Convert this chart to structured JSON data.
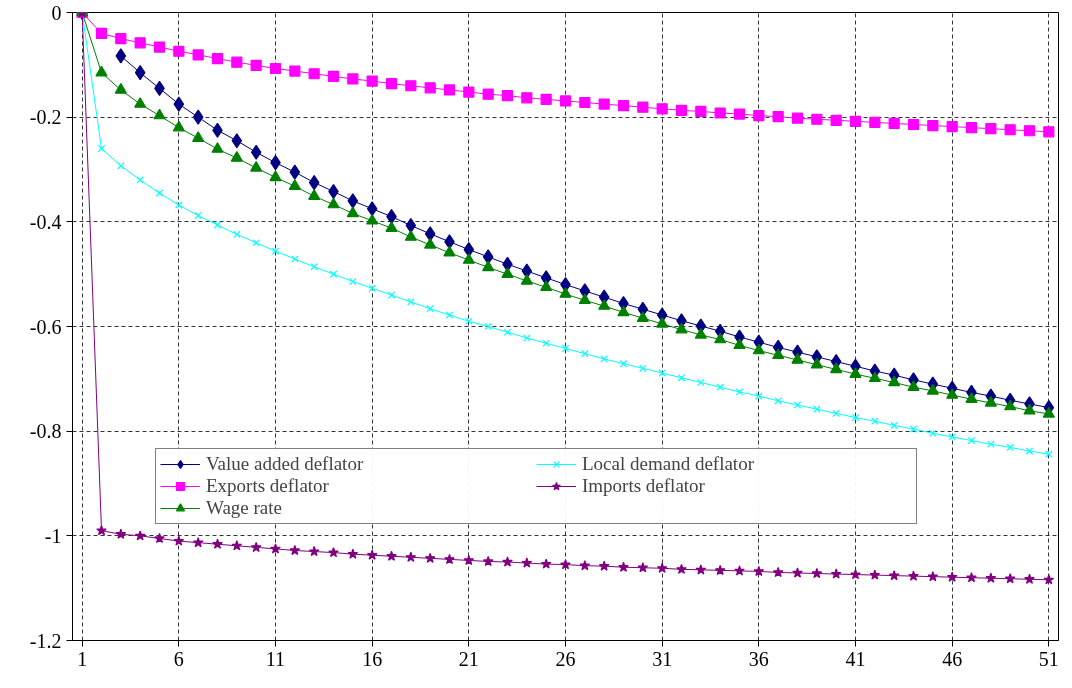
{
  "chart_data": {
    "type": "line",
    "x": [
      1,
      2,
      3,
      4,
      5,
      6,
      7,
      8,
      9,
      10,
      11,
      12,
      13,
      14,
      15,
      16,
      17,
      18,
      19,
      20,
      21,
      22,
      23,
      24,
      25,
      26,
      27,
      28,
      29,
      30,
      31,
      32,
      33,
      34,
      35,
      36,
      37,
      38,
      39,
      40,
      41,
      42,
      43,
      44,
      45,
      46,
      47,
      48,
      49,
      50,
      51
    ],
    "xlim": [
      0.5,
      51.5
    ],
    "xticks": [
      1,
      6,
      11,
      16,
      21,
      26,
      31,
      36,
      41,
      46,
      51
    ],
    "ylim": [
      -1.2,
      0
    ],
    "yticks": [
      -1.2,
      -1,
      -0.8,
      -0.6,
      -0.4,
      -0.2,
      0
    ],
    "grid": true,
    "legend": "bottom",
    "series": [
      {
        "name": "Value added deflator",
        "color": "#000080",
        "marker": "diamond",
        "values": [
          0,
          null,
          -0.083,
          -0.115,
          -0.145,
          -0.175,
          -0.2,
          -0.225,
          -0.245,
          -0.267,
          -0.287,
          -0.305,
          -0.325,
          -0.342,
          -0.36,
          -0.375,
          -0.39,
          -0.407,
          -0.423,
          -0.438,
          -0.453,
          -0.467,
          -0.481,
          -0.494,
          -0.507,
          -0.52,
          -0.532,
          -0.544,
          -0.556,
          -0.567,
          -0.578,
          -0.589,
          -0.599,
          -0.609,
          -0.62,
          -0.63,
          -0.64,
          -0.649,
          -0.658,
          -0.667,
          -0.676,
          -0.685,
          -0.693,
          -0.702,
          -0.71,
          -0.718,
          -0.726,
          -0.733,
          -0.741,
          -0.748,
          -0.755
        ]
      },
      {
        "name": "Exports deflator",
        "color": "#ff00ff",
        "marker": "square",
        "values": [
          0,
          -0.04,
          -0.05,
          -0.058,
          -0.066,
          -0.074,
          -0.081,
          -0.088,
          -0.095,
          -0.101,
          -0.107,
          -0.112,
          -0.117,
          -0.122,
          -0.127,
          -0.131,
          -0.136,
          -0.14,
          -0.144,
          -0.148,
          -0.152,
          -0.156,
          -0.159,
          -0.163,
          -0.166,
          -0.169,
          -0.172,
          -0.175,
          -0.178,
          -0.181,
          -0.184,
          -0.187,
          -0.189,
          -0.192,
          -0.194,
          -0.197,
          -0.199,
          -0.202,
          -0.204,
          -0.206,
          -0.208,
          -0.21,
          -0.212,
          -0.214,
          -0.216,
          -0.218,
          -0.22,
          -0.222,
          -0.224,
          -0.226,
          -0.228
        ]
      },
      {
        "name": "Wage rate",
        "color": "#008000",
        "marker": "triangle",
        "values": [
          0,
          -0.115,
          -0.148,
          -0.175,
          -0.197,
          -0.22,
          -0.24,
          -0.261,
          -0.278,
          -0.297,
          -0.315,
          -0.332,
          -0.351,
          -0.367,
          -0.384,
          -0.398,
          -0.412,
          -0.429,
          -0.444,
          -0.459,
          -0.473,
          -0.487,
          -0.5,
          -0.513,
          -0.525,
          -0.538,
          -0.55,
          -0.561,
          -0.573,
          -0.584,
          -0.595,
          -0.606,
          -0.616,
          -0.625,
          -0.636,
          -0.646,
          -0.655,
          -0.664,
          -0.673,
          -0.682,
          -0.691,
          -0.699,
          -0.707,
          -0.716,
          -0.723,
          -0.731,
          -0.739,
          -0.746,
          -0.753,
          -0.761,
          -0.767
        ]
      },
      {
        "name": "Local demand deflator",
        "color": "#00ffff",
        "marker": "cross",
        "values": [
          0,
          -0.26,
          -0.293,
          -0.32,
          -0.345,
          -0.368,
          -0.388,
          -0.406,
          -0.424,
          -0.44,
          -0.456,
          -0.471,
          -0.486,
          -0.5,
          -0.514,
          -0.527,
          -0.54,
          -0.553,
          -0.566,
          -0.578,
          -0.59,
          -0.6,
          -0.611,
          -0.622,
          -0.632,
          -0.642,
          -0.652,
          -0.662,
          -0.671,
          -0.68,
          -0.689,
          -0.698,
          -0.707,
          -0.716,
          -0.725,
          -0.733,
          -0.742,
          -0.75,
          -0.758,
          -0.766,
          -0.774,
          -0.781,
          -0.789,
          -0.796,
          -0.804,
          -0.811,
          -0.818,
          -0.825,
          -0.831,
          -0.838,
          -0.844
        ]
      },
      {
        "name": "Imports deflator",
        "color": "#800080",
        "marker": "star",
        "values": [
          0,
          -0.99,
          -0.997,
          -1.0,
          -1.005,
          -1.01,
          -1.013,
          -1.016,
          -1.019,
          -1.022,
          -1.025,
          -1.028,
          -1.03,
          -1.032,
          -1.035,
          -1.037,
          -1.039,
          -1.041,
          -1.043,
          -1.045,
          -1.047,
          -1.049,
          -1.05,
          -1.052,
          -1.054,
          -1.055,
          -1.057,
          -1.058,
          -1.06,
          -1.061,
          -1.062,
          -1.064,
          -1.065,
          -1.066,
          -1.067,
          -1.068,
          -1.07,
          -1.071,
          -1.072,
          -1.073,
          -1.074,
          -1.075,
          -1.076,
          -1.077,
          -1.078,
          -1.079,
          -1.08,
          -1.081,
          -1.082,
          -1.083,
          -1.084
        ]
      }
    ]
  }
}
